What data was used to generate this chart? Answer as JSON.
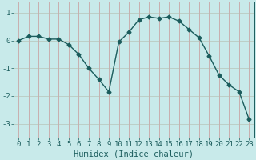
{
  "x": [
    0,
    1,
    2,
    3,
    4,
    5,
    6,
    7,
    8,
    9,
    10,
    11,
    12,
    13,
    14,
    15,
    16,
    17,
    18,
    19,
    20,
    21,
    22,
    23
  ],
  "y": [
    0.0,
    0.15,
    0.15,
    0.05,
    0.05,
    -0.15,
    -0.5,
    -1.0,
    -1.4,
    -1.85,
    -0.05,
    0.3,
    0.75,
    0.85,
    0.8,
    0.85,
    0.7,
    0.4,
    0.1,
    -0.55,
    -1.25,
    -1.6,
    -1.85,
    -2.85
  ],
  "line_color": "#1a5c5c",
  "bg_color": "#c8eaea",
  "grid_color_v": "#d0b8b8",
  "grid_color_h": "#c0c8c0",
  "xlabel": "Humidex (Indice chaleur)",
  "ylim": [
    -3.5,
    1.4
  ],
  "xlim": [
    -0.5,
    23.5
  ],
  "yticks": [
    -3,
    -2,
    -1,
    0,
    1
  ],
  "xticks": [
    0,
    1,
    2,
    3,
    4,
    5,
    6,
    7,
    8,
    9,
    10,
    11,
    12,
    13,
    14,
    15,
    16,
    17,
    18,
    19,
    20,
    21,
    22,
    23
  ],
  "marker_size": 2.5,
  "line_width": 1.0,
  "xlabel_fontsize": 7.5,
  "tick_fontsize": 6.5
}
